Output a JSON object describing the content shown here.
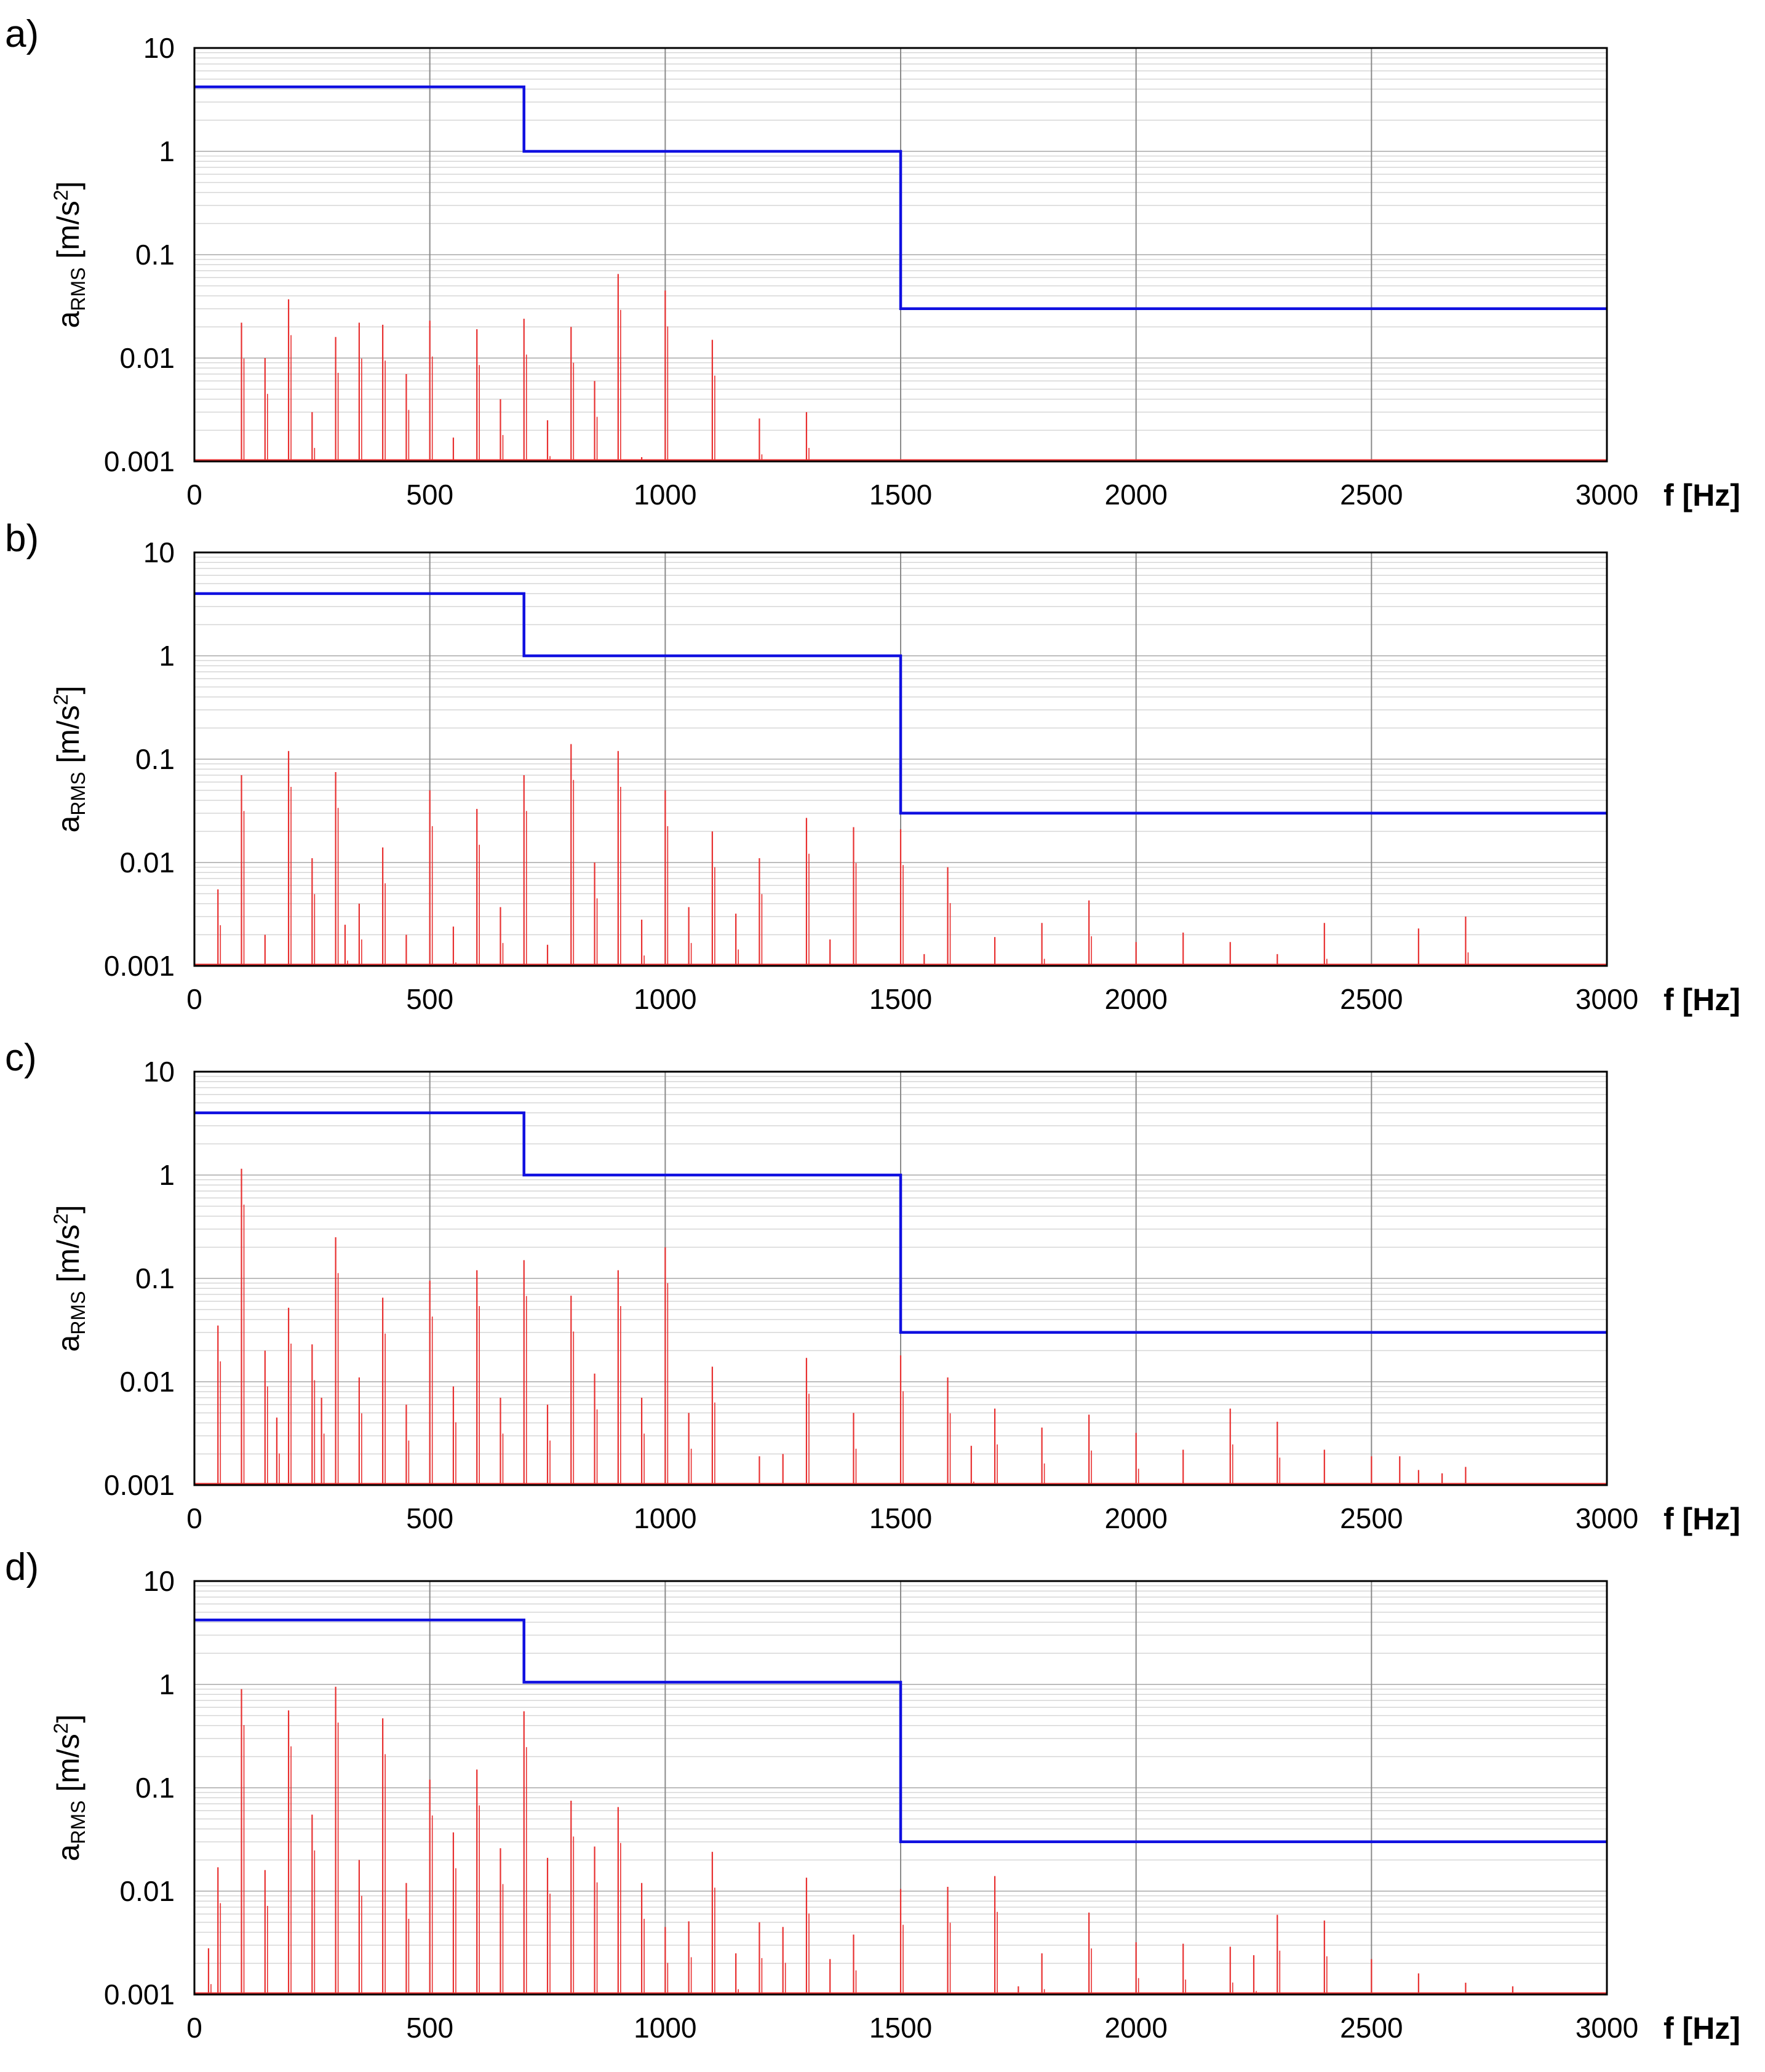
{
  "colors": {
    "limit": "#1010e0",
    "spectrum": "#e83030"
  },
  "chart_data": [
    {
      "type": "line",
      "panel_label": "a)",
      "xlabel": "f [Hz]",
      "ylabel": {
        "main": "a",
        "sub": "RMS",
        "unit_pre": " [m/s",
        "unit_sup": "2",
        "unit_post": "]"
      },
      "xlim": [
        0,
        3000
      ],
      "ylim": [
        0.001,
        10
      ],
      "yscale": "log",
      "x_ticks": [
        "0",
        "500",
        "1000",
        "1500",
        "2000",
        "2500",
        "3000"
      ],
      "y_ticks": [
        "0.001",
        "0.01",
        "0.1",
        "1",
        "10"
      ],
      "grid": true,
      "series": [
        {
          "name": "limit",
          "kind": "step",
          "x": [
            0,
            700,
            700,
            1500,
            1500,
            3000
          ],
          "values": [
            4.2,
            4.2,
            1.0,
            1.0,
            0.03,
            0.03
          ]
        },
        {
          "name": "spectrum",
          "kind": "stems",
          "x": [
            100,
            150,
            200,
            250,
            300,
            350,
            400,
            450,
            500,
            550,
            600,
            650,
            700,
            750,
            800,
            850,
            900,
            950,
            1000,
            1100,
            1200,
            1300
          ],
          "values": [
            0.022,
            0.01,
            0.037,
            0.003,
            0.016,
            0.022,
            0.021,
            0.007,
            0.023,
            0.0017,
            0.019,
            0.004,
            0.024,
            0.0025,
            0.02,
            0.006,
            0.065,
            0.0011,
            0.045,
            0.015,
            0.0026,
            0.003
          ]
        }
      ]
    },
    {
      "type": "line",
      "panel_label": "b)",
      "xlabel": "f [Hz]",
      "ylabel": {
        "main": "a",
        "sub": "RMS",
        "unit_pre": " [m/s",
        "unit_sup": "2",
        "unit_post": "]"
      },
      "xlim": [
        0,
        3000
      ],
      "ylim": [
        0.001,
        10
      ],
      "yscale": "log",
      "x_ticks": [
        "0",
        "500",
        "1000",
        "1500",
        "2000",
        "2500",
        "3000"
      ],
      "y_ticks": [
        "0.001",
        "0.01",
        "0.1",
        "1",
        "10"
      ],
      "grid": true,
      "series": [
        {
          "name": "limit",
          "kind": "step",
          "x": [
            0,
            700,
            700,
            1500,
            1500,
            3000
          ],
          "values": [
            4.0,
            4.0,
            1.0,
            1.0,
            0.03,
            0.03
          ]
        },
        {
          "name": "spectrum",
          "kind": "stems",
          "x": [
            50,
            100,
            150,
            200,
            250,
            300,
            320,
            350,
            400,
            450,
            500,
            550,
            600,
            650,
            700,
            750,
            800,
            850,
            900,
            950,
            1000,
            1050,
            1100,
            1150,
            1200,
            1300,
            1350,
            1400,
            1500,
            1550,
            1600,
            1700,
            1800,
            1900,
            2000,
            2100,
            2200,
            2300,
            2400,
            2600,
            2700
          ],
          "values": [
            0.0055,
            0.07,
            0.002,
            0.12,
            0.011,
            0.075,
            0.0025,
            0.004,
            0.014,
            0.002,
            0.05,
            0.0024,
            0.033,
            0.0037,
            0.07,
            0.0016,
            0.14,
            0.01,
            0.12,
            0.0028,
            0.05,
            0.0037,
            0.02,
            0.0032,
            0.011,
            0.027,
            0.0018,
            0.022,
            0.021,
            0.0013,
            0.009,
            0.0019,
            0.0026,
            0.0043,
            0.0017,
            0.0021,
            0.0017,
            0.0013,
            0.0026,
            0.0023,
            0.003
          ]
        }
      ]
    },
    {
      "type": "line",
      "panel_label": "c)",
      "xlabel": "f [Hz]",
      "ylabel": {
        "main": "a",
        "sub": "RMS",
        "unit_pre": " [m/s",
        "unit_sup": "2",
        "unit_post": "]"
      },
      "xlim": [
        0,
        3000
      ],
      "ylim": [
        0.001,
        10
      ],
      "yscale": "log",
      "x_ticks": [
        "0",
        "500",
        "1000",
        "1500",
        "2000",
        "2500",
        "3000"
      ],
      "y_ticks": [
        "0.001",
        "0.01",
        "0.1",
        "1",
        "10"
      ],
      "grid": true,
      "series": [
        {
          "name": "limit",
          "kind": "step",
          "x": [
            0,
            700,
            700,
            1500,
            1500,
            3000
          ],
          "values": [
            4.0,
            4.0,
            1.0,
            1.0,
            0.03,
            0.03
          ]
        },
        {
          "name": "spectrum",
          "kind": "stems",
          "x": [
            50,
            100,
            150,
            175,
            200,
            250,
            270,
            300,
            350,
            400,
            450,
            500,
            550,
            600,
            650,
            700,
            750,
            800,
            850,
            900,
            950,
            1000,
            1050,
            1100,
            1200,
            1250,
            1300,
            1400,
            1500,
            1600,
            1650,
            1700,
            1800,
            1900,
            2000,
            2100,
            2200,
            2300,
            2400,
            2500,
            2560,
            2600,
            2650,
            2700
          ],
          "values": [
            0.035,
            1.15,
            0.02,
            0.0045,
            0.052,
            0.023,
            0.007,
            0.25,
            0.011,
            0.065,
            0.006,
            0.095,
            0.009,
            0.12,
            0.007,
            0.15,
            0.006,
            0.068,
            0.012,
            0.12,
            0.007,
            0.2,
            0.005,
            0.014,
            0.0019,
            0.002,
            0.017,
            0.005,
            0.018,
            0.011,
            0.0024,
            0.0055,
            0.0036,
            0.0048,
            0.0032,
            0.0022,
            0.0055,
            0.0041,
            0.0022,
            0.0019,
            0.0019,
            0.0014,
            0.0013,
            0.0015
          ]
        }
      ]
    },
    {
      "type": "line",
      "panel_label": "d)",
      "xlabel": "f [Hz]",
      "ylabel": {
        "main": "a",
        "sub": "RMS",
        "unit_pre": " [m/s",
        "unit_sup": "2",
        "unit_post": "]"
      },
      "xlim": [
        0,
        3000
      ],
      "ylim": [
        0.001,
        10
      ],
      "yscale": "log",
      "x_ticks": [
        "0",
        "500",
        "1000",
        "1500",
        "2000",
        "2500",
        "3000"
      ],
      "y_ticks": [
        "0.001",
        "0.01",
        "0.1",
        "1",
        "10"
      ],
      "grid": true,
      "series": [
        {
          "name": "limit",
          "kind": "step",
          "x": [
            0,
            700,
            700,
            1500,
            1500,
            3000
          ],
          "values": [
            4.2,
            4.2,
            1.05,
            1.05,
            0.03,
            0.03
          ]
        },
        {
          "name": "spectrum",
          "kind": "stems",
          "x": [
            30,
            50,
            100,
            150,
            200,
            250,
            300,
            350,
            400,
            450,
            500,
            550,
            600,
            650,
            700,
            750,
            800,
            850,
            900,
            950,
            1000,
            1050,
            1100,
            1150,
            1200,
            1250,
            1300,
            1350,
            1400,
            1500,
            1600,
            1700,
            1750,
            1800,
            1900,
            2000,
            2100,
            2200,
            2250,
            2300,
            2400,
            2500,
            2600,
            2700,
            2800
          ],
          "values": [
            0.0028,
            0.017,
            0.9,
            0.016,
            0.56,
            0.055,
            0.95,
            0.02,
            0.47,
            0.012,
            0.12,
            0.037,
            0.15,
            0.026,
            0.55,
            0.021,
            0.075,
            0.027,
            0.065,
            0.012,
            0.0045,
            0.0051,
            0.024,
            0.0025,
            0.005,
            0.0045,
            0.0135,
            0.0022,
            0.0038,
            0.0105,
            0.011,
            0.014,
            0.0012,
            0.0025,
            0.0062,
            0.0032,
            0.0031,
            0.0029,
            0.0024,
            0.0059,
            0.0052,
            0.0022,
            0.0016,
            0.0013,
            0.0012
          ]
        }
      ]
    }
  ]
}
